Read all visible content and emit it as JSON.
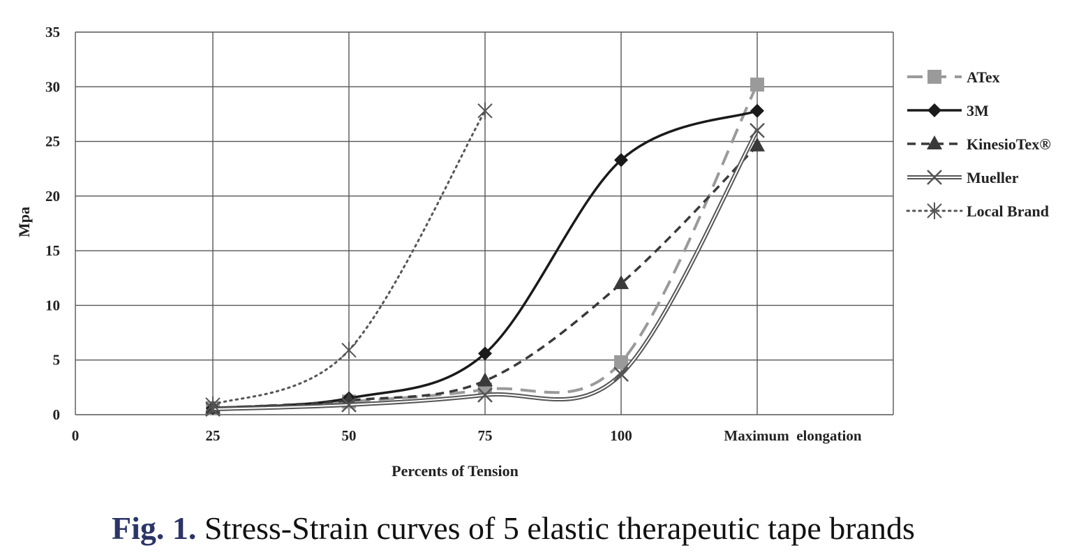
{
  "chart_data": {
    "type": "line",
    "xlabel": "Percents of Tension",
    "ylabel": "Mpa",
    "x_tick_labels": [
      "0",
      "25",
      "50",
      "75",
      "100",
      "Maximum  elongation"
    ],
    "categories": [
      "25",
      "50",
      "75",
      "100",
      "Maximum  elongation"
    ],
    "y_ticks": [
      "0",
      "5",
      "10",
      "15",
      "20",
      "25",
      "30",
      "35"
    ],
    "ylim": [
      0,
      35
    ],
    "grid": true,
    "legend_position": "right",
    "series": [
      {
        "name": "ATex",
        "values": [
          0.6,
          1.2,
          2.3,
          4.8,
          30.2
        ],
        "color": "#9a9a9a",
        "dash": "long-dash",
        "marker": "square"
      },
      {
        "name": "3M",
        "values": [
          0.6,
          1.5,
          5.6,
          23.3,
          27.8
        ],
        "color": "#1a1a1a",
        "dash": "solid",
        "marker": "diamond"
      },
      {
        "name": "KinesioTex®",
        "values": [
          0.6,
          1.3,
          3.1,
          12.0,
          24.6
        ],
        "color": "#3a3a3a",
        "dash": "dash",
        "marker": "triangle"
      },
      {
        "name": "Mueller",
        "values": [
          0.5,
          0.9,
          1.8,
          3.7,
          26.0
        ],
        "color": "#555555",
        "dash": "double",
        "marker": "x"
      },
      {
        "name": "Local Brand",
        "values": [
          0.9,
          5.9,
          27.8,
          null,
          null
        ],
        "color": "#555555",
        "dash": "dotted",
        "marker": "star"
      }
    ]
  },
  "caption": {
    "label": "Fig. 1.",
    "text": " Stress-Strain curves of 5 elastic therapeutic tape brands"
  }
}
